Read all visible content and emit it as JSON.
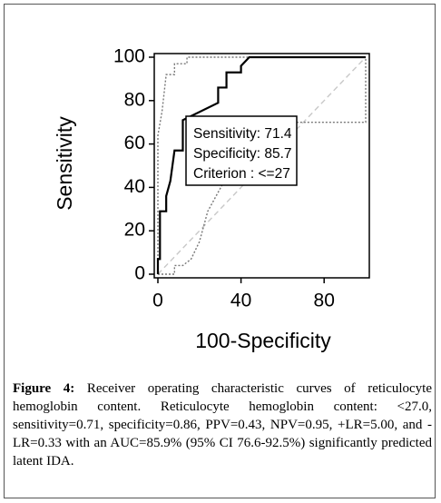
{
  "chart_data": {
    "type": "line",
    "xlabel": "100-Specificity",
    "ylabel": "Sensitivity",
    "xlim": [
      0,
      100
    ],
    "ylim": [
      0,
      100
    ],
    "xticks": [
      0,
      40,
      80
    ],
    "yticks": [
      0,
      20,
      40,
      60,
      80,
      100
    ],
    "series": [
      {
        "color": "#c8c8c8",
        "style": "dashed",
        "x": [
          0,
          100
        ],
        "values": [
          0,
          100
        ]
      },
      {
        "color": "#777777",
        "style": "dotted",
        "x": [
          0,
          0,
          2,
          4,
          8,
          8,
          14,
          14,
          100
        ],
        "values": [
          0,
          64,
          75,
          92,
          92,
          97,
          97,
          100,
          100
        ]
      },
      {
        "color": "#777777",
        "style": "dotted",
        "x": [
          0,
          8,
          8,
          12,
          16,
          20,
          24,
          28,
          32,
          40,
          44,
          44,
          60,
          60,
          100,
          100
        ],
        "values": [
          0,
          0,
          4,
          4,
          7,
          15,
          29,
          36,
          43,
          43,
          50,
          57,
          57,
          70,
          70,
          100
        ]
      },
      {
        "color": "#000000",
        "style": "solid",
        "x": [
          0,
          0,
          1,
          1,
          4,
          4,
          6,
          8,
          12,
          12,
          29,
          29,
          33,
          33,
          40,
          40,
          44,
          100
        ],
        "values": [
          0,
          7,
          7,
          29,
          29,
          36,
          43,
          57,
          57,
          71,
          79,
          86,
          86,
          93,
          93,
          96,
          100,
          100
        ]
      }
    ],
    "annotation": [
      "Sensitivity: 71.4",
      "Specificity: 85.7",
      "Criterion : <=27"
    ],
    "caption_label": "Figure 4:",
    "caption": "Receiver operating characteristic curves of reticulocyte hemoglobin content. Reticulocyte hemoglobin content: <27.0, sensitivity=0.71, specificity=0.86, PPV=0.43, NPV=0.95, +LR=5.00, and -LR=0.33 with an AUC=85.9% (95% CI 76.6-92.5%) significantly predicted latent IDA."
  }
}
